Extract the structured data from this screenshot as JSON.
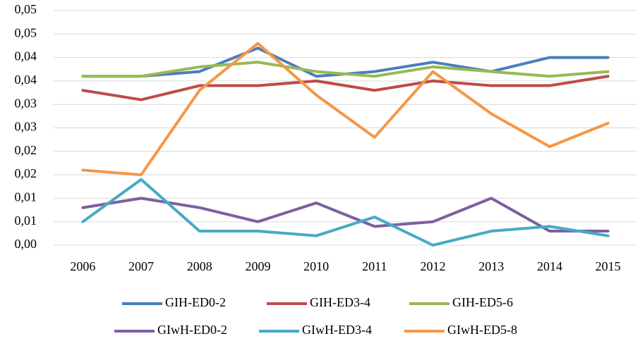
{
  "chart_data": {
    "type": "line",
    "categories": [
      "2006",
      "2007",
      "2008",
      "2009",
      "2010",
      "2011",
      "2012",
      "2013",
      "2014",
      "2015"
    ],
    "series": [
      {
        "name": "GIH-ED0-2",
        "color": "#4a7ebb",
        "values": [
          0.036,
          0.036,
          0.037,
          0.042,
          0.036,
          0.037,
          0.039,
          0.037,
          0.04,
          0.04
        ]
      },
      {
        "name": "GIH-ED3-4",
        "color": "#be4b48",
        "values": [
          0.033,
          0.031,
          0.034,
          0.034,
          0.035,
          0.033,
          0.035,
          0.034,
          0.034,
          0.036
        ]
      },
      {
        "name": "GIH-ED5-6",
        "color": "#98b954",
        "values": [
          0.036,
          0.036,
          0.038,
          0.039,
          0.037,
          0.036,
          0.038,
          0.037,
          0.036,
          0.037
        ]
      },
      {
        "name": "GIwH-ED0-2",
        "color": "#7d5fa0",
        "values": [
          0.008,
          0.01,
          0.008,
          0.005,
          0.009,
          0.004,
          0.005,
          0.01,
          0.003,
          0.003
        ]
      },
      {
        "name": "GIwH-ED3-4",
        "color": "#46aac5",
        "values": [
          0.005,
          0.014,
          0.003,
          0.003,
          0.002,
          0.006,
          0.0,
          0.003,
          0.004,
          0.002
        ]
      },
      {
        "name": "GIwH-ED5-8",
        "color": "#f79646",
        "values": [
          0.016,
          0.015,
          0.033,
          0.043,
          0.032,
          0.023,
          0.037,
          0.028,
          0.021,
          0.026
        ]
      }
    ],
    "ylim": [
      0,
      0.05
    ],
    "yticks": [
      {
        "value": 0,
        "label": "0,00"
      },
      {
        "value": 0.005,
        "label": "0,01"
      },
      {
        "value": 0.01,
        "label": "0,01"
      },
      {
        "value": 0.015,
        "label": "0,02"
      },
      {
        "value": 0.02,
        "label": "0,02"
      },
      {
        "value": 0.025,
        "label": "0,03"
      },
      {
        "value": 0.03,
        "label": "0,03"
      },
      {
        "value": 0.035,
        "label": "0,04"
      },
      {
        "value": 0.04,
        "label": "0,04"
      },
      {
        "value": 0.045,
        "label": "0,05"
      },
      {
        "value": 0.05,
        "label": "0,05"
      }
    ],
    "grid": true,
    "legend": "bottom"
  }
}
